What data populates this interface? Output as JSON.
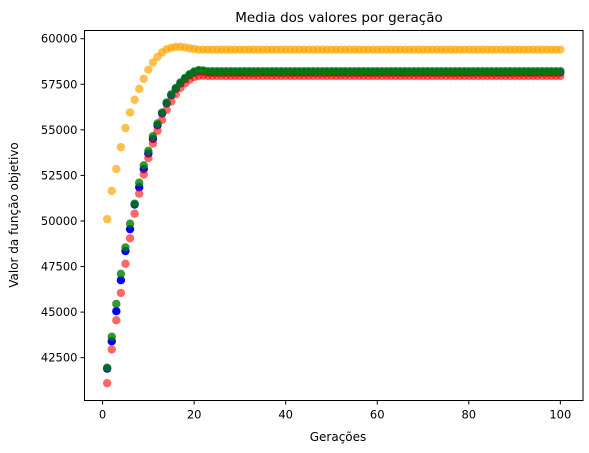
{
  "chart_data": {
    "type": "scatter",
    "title": "Media dos valores por geração",
    "xlabel": "Gerações",
    "ylabel": "Valor da função objetivo",
    "xlim": [
      -3.95,
      104.95
    ],
    "ylim": [
      40150,
      60450
    ],
    "xticks": [
      0,
      20,
      40,
      60,
      80,
      100
    ],
    "yticks": [
      42500,
      45000,
      47500,
      50000,
      52500,
      55000,
      57500,
      60000
    ],
    "grid": false,
    "legend": "none",
    "x_start": 1,
    "x_end": 100,
    "series": [
      {
        "color": "#ffa500",
        "alpha": 0.7,
        "values_head": [
          50100,
          51650,
          52850,
          54050,
          55100,
          55950,
          56650,
          57250,
          57800,
          58300,
          58700,
          59000,
          59250,
          59420,
          59500,
          59550,
          59560,
          59520,
          59470,
          59440
        ],
        "plateau": 59400
      },
      {
        "color": "#0000ff",
        "alpha": 1.0,
        "values_head": [
          41900,
          43400,
          45050,
          46750,
          48350,
          49550,
          50900,
          51850,
          52850,
          53700,
          54500,
          55250,
          55900,
          56450,
          56900,
          57250,
          57550,
          57800,
          58000,
          58150,
          58220,
          58200
        ],
        "plateau": 58150
      },
      {
        "color": "#ff0000",
        "alpha": 0.6,
        "values_head": [
          41100,
          42950,
          44550,
          46050,
          47650,
          49050,
          50400,
          51500,
          52550,
          53450,
          54250,
          54950,
          55550,
          56100,
          56550,
          56950,
          57300,
          57550,
          57750,
          57900,
          57950,
          57970
        ],
        "plateau": 57950
      },
      {
        "color": "#008000",
        "alpha": 0.8,
        "values_head": [
          41950,
          43650,
          45450,
          47100,
          48550,
          49850,
          50950,
          52100,
          53050,
          53850,
          54650,
          55350,
          55950,
          56500,
          56950,
          57300,
          57600,
          57850,
          58050,
          58200,
          58280,
          58260
        ],
        "plateau": 58220
      }
    ]
  }
}
